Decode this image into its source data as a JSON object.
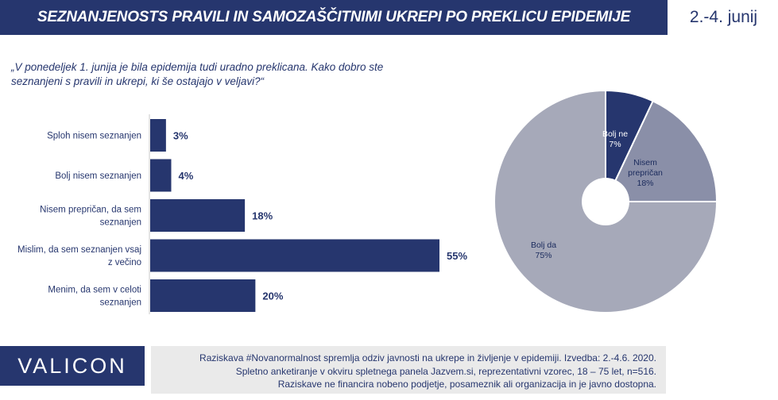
{
  "header": {
    "title": "SEZNANJENOSTS PRAVILI IN SAMOZAŠČITNIMI UKREPI PO PREKLICU EPIDEMIJE",
    "date": "2.-4. junij"
  },
  "question": "„V ponedeljek 1. junija je bila epidemija tudi uradno preklicana. Kako dobro ste seznanjeni s pravili in ukrepi, ki še ostajajo v veljavi?“",
  "chart_data": [
    {
      "type": "bar",
      "orientation": "horizontal",
      "categories": [
        [
          "Sploh nisem seznanjen"
        ],
        [
          "Bolj nisem seznanjen"
        ],
        [
          "Nisem prepričan, da sem",
          "seznanjen"
        ],
        [
          "Mislim, da sem seznanjen vsaj",
          "z večino"
        ],
        [
          "Menim, da sem v celoti",
          "seznanjen"
        ]
      ],
      "values": [
        3,
        4,
        18,
        55,
        20
      ],
      "value_labels": [
        "3%",
        "4%",
        "18%",
        "55%",
        "20%"
      ],
      "xlim": [
        0,
        55
      ],
      "color": "#26366e",
      "grid": false
    },
    {
      "type": "pie",
      "donut": true,
      "slices": [
        {
          "label": [
            "Bolj ne",
            "7%"
          ],
          "value": 7,
          "color": "#26366e",
          "text_color": "#ffffff"
        },
        {
          "label": [
            "Nisem",
            "prepričan",
            "18%"
          ],
          "value": 18,
          "color": "#8a8fa8",
          "text_color": "#1a2a5c"
        },
        {
          "label": [
            "Bolj da",
            "75%"
          ],
          "value": 75,
          "color": "#a6a9b9",
          "text_color": "#1a2a5c"
        }
      ]
    }
  ],
  "footer": {
    "logo": "VALICON",
    "lines": [
      "Raziskava #Novanormalnost spremlja odziv javnosti na ukrepe in življenje v epidemiji. Izvedba: 2.-4.6. 2020.",
      "Spletno anketiranje v okviru spletnega panela Jazvem.si, reprezentativni vzorec, 18 – 75 let, n=516.",
      "Raziskave ne financira nobeno podjetje, posameznik ali organizacija in je javno dostopna."
    ]
  }
}
